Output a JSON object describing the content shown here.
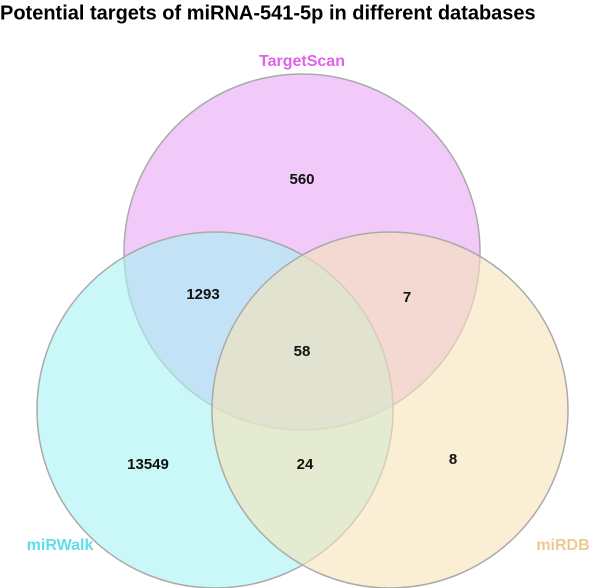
{
  "chart_data": {
    "type": "venn",
    "title": "Potential targets of miRNA-541-5p in different databases",
    "sets": [
      {
        "name": "TargetScan",
        "color": "#e8a6f5",
        "label_color": "#e061ea"
      },
      {
        "name": "miRWalk",
        "color": "#a6f2f2",
        "label_color": "#5cdfe9"
      },
      {
        "name": "miRDB",
        "color": "#f6e2b8",
        "label_color": "#ebcb91"
      }
    ],
    "regions": [
      560,
      1293,
      7,
      58,
      13549,
      24,
      8
    ]
  }
}
